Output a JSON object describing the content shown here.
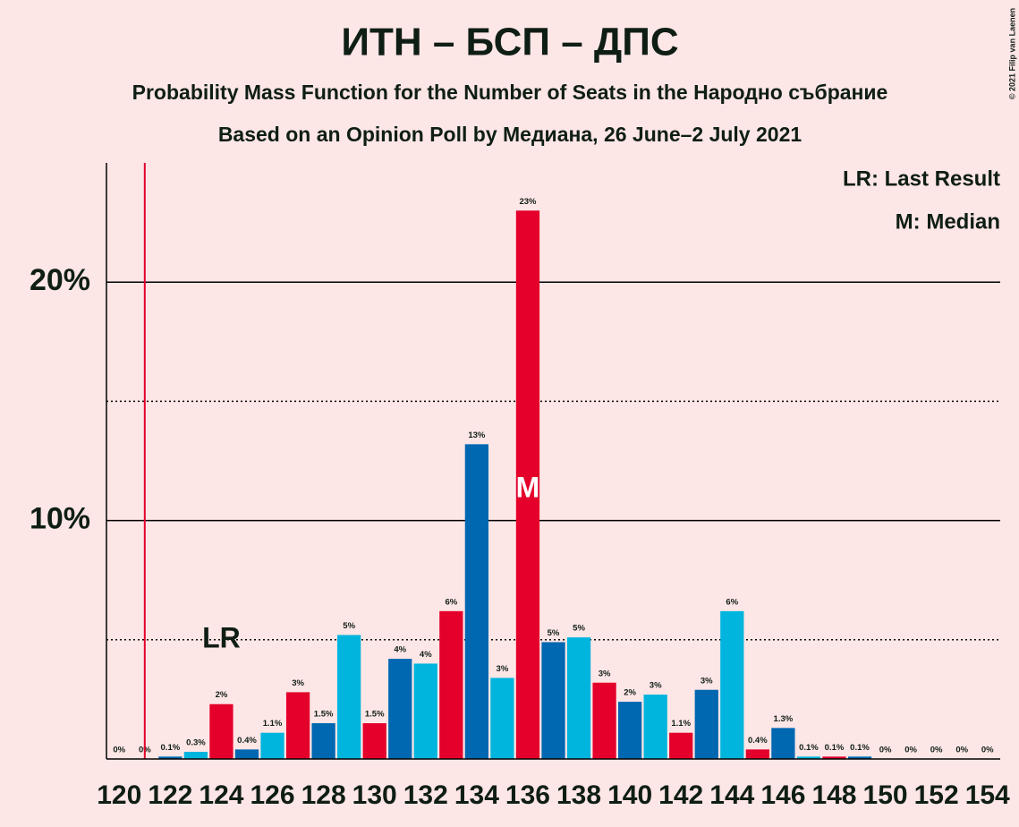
{
  "chart_data": {
    "type": "bar",
    "title": "ИТН – БСП – ДПС",
    "subtitle": "Probability Mass Function for the Number of Seats in the Народно събрание",
    "subtitle2": "Based on an Opinion Poll by Медиана, 26 June–2 July 2021",
    "copyright": "© 2021 Filip van Laenen",
    "x": [
      120,
      121,
      122,
      123,
      124,
      125,
      126,
      127,
      128,
      129,
      130,
      131,
      132,
      133,
      134,
      135,
      136,
      137,
      138,
      139,
      140,
      141,
      142,
      143,
      144,
      145,
      146,
      147,
      148,
      149,
      150,
      151,
      152,
      153,
      154
    ],
    "values": [
      0,
      0,
      0.1,
      0.3,
      2.3,
      0.4,
      1.1,
      2.8,
      1.5,
      5.2,
      1.5,
      4.2,
      4.0,
      6.2,
      13.2,
      3.4,
      23.0,
      4.9,
      5.1,
      3.2,
      2.4,
      2.7,
      1.1,
      2.9,
      6.2,
      0.4,
      1.3,
      0.1,
      0.1,
      0.1,
      0,
      0,
      0,
      0,
      0
    ],
    "value_labels": [
      "0%",
      "0%",
      "0.1%",
      "0.3%",
      "2%",
      "0.4%",
      "1.1%",
      "3%",
      "1.5%",
      "5%",
      "1.5%",
      "4%",
      "4%",
      "6%",
      "13%",
      "3%",
      "23%",
      "5%",
      "5%",
      "3%",
      "2%",
      "3%",
      "1.1%",
      "3%",
      "6%",
      "0.4%",
      "1.3%",
      "0.1%",
      "0.1%",
      "0.1%",
      "0%",
      "0%",
      "0%",
      "0%",
      "0%"
    ],
    "color_cycle": [
      "#00b5dd",
      "#e4002b",
      "#0067b1"
    ],
    "xlim": [
      119.5,
      154.5
    ],
    "xticks": [
      120,
      122,
      124,
      126,
      128,
      130,
      132,
      134,
      136,
      138,
      140,
      142,
      144,
      146,
      148,
      150,
      152,
      154
    ],
    "ylim": [
      0,
      25
    ],
    "yticks": [
      {
        "value": 10,
        "label": "10%"
      },
      {
        "value": 20,
        "label": "20%"
      }
    ],
    "minor_grid": [
      5,
      15
    ],
    "last_result": 121,
    "last_result_label": "LR",
    "median": 136,
    "median_label": "M",
    "legend": [
      "LR: Last Result",
      "M: Median"
    ]
  }
}
